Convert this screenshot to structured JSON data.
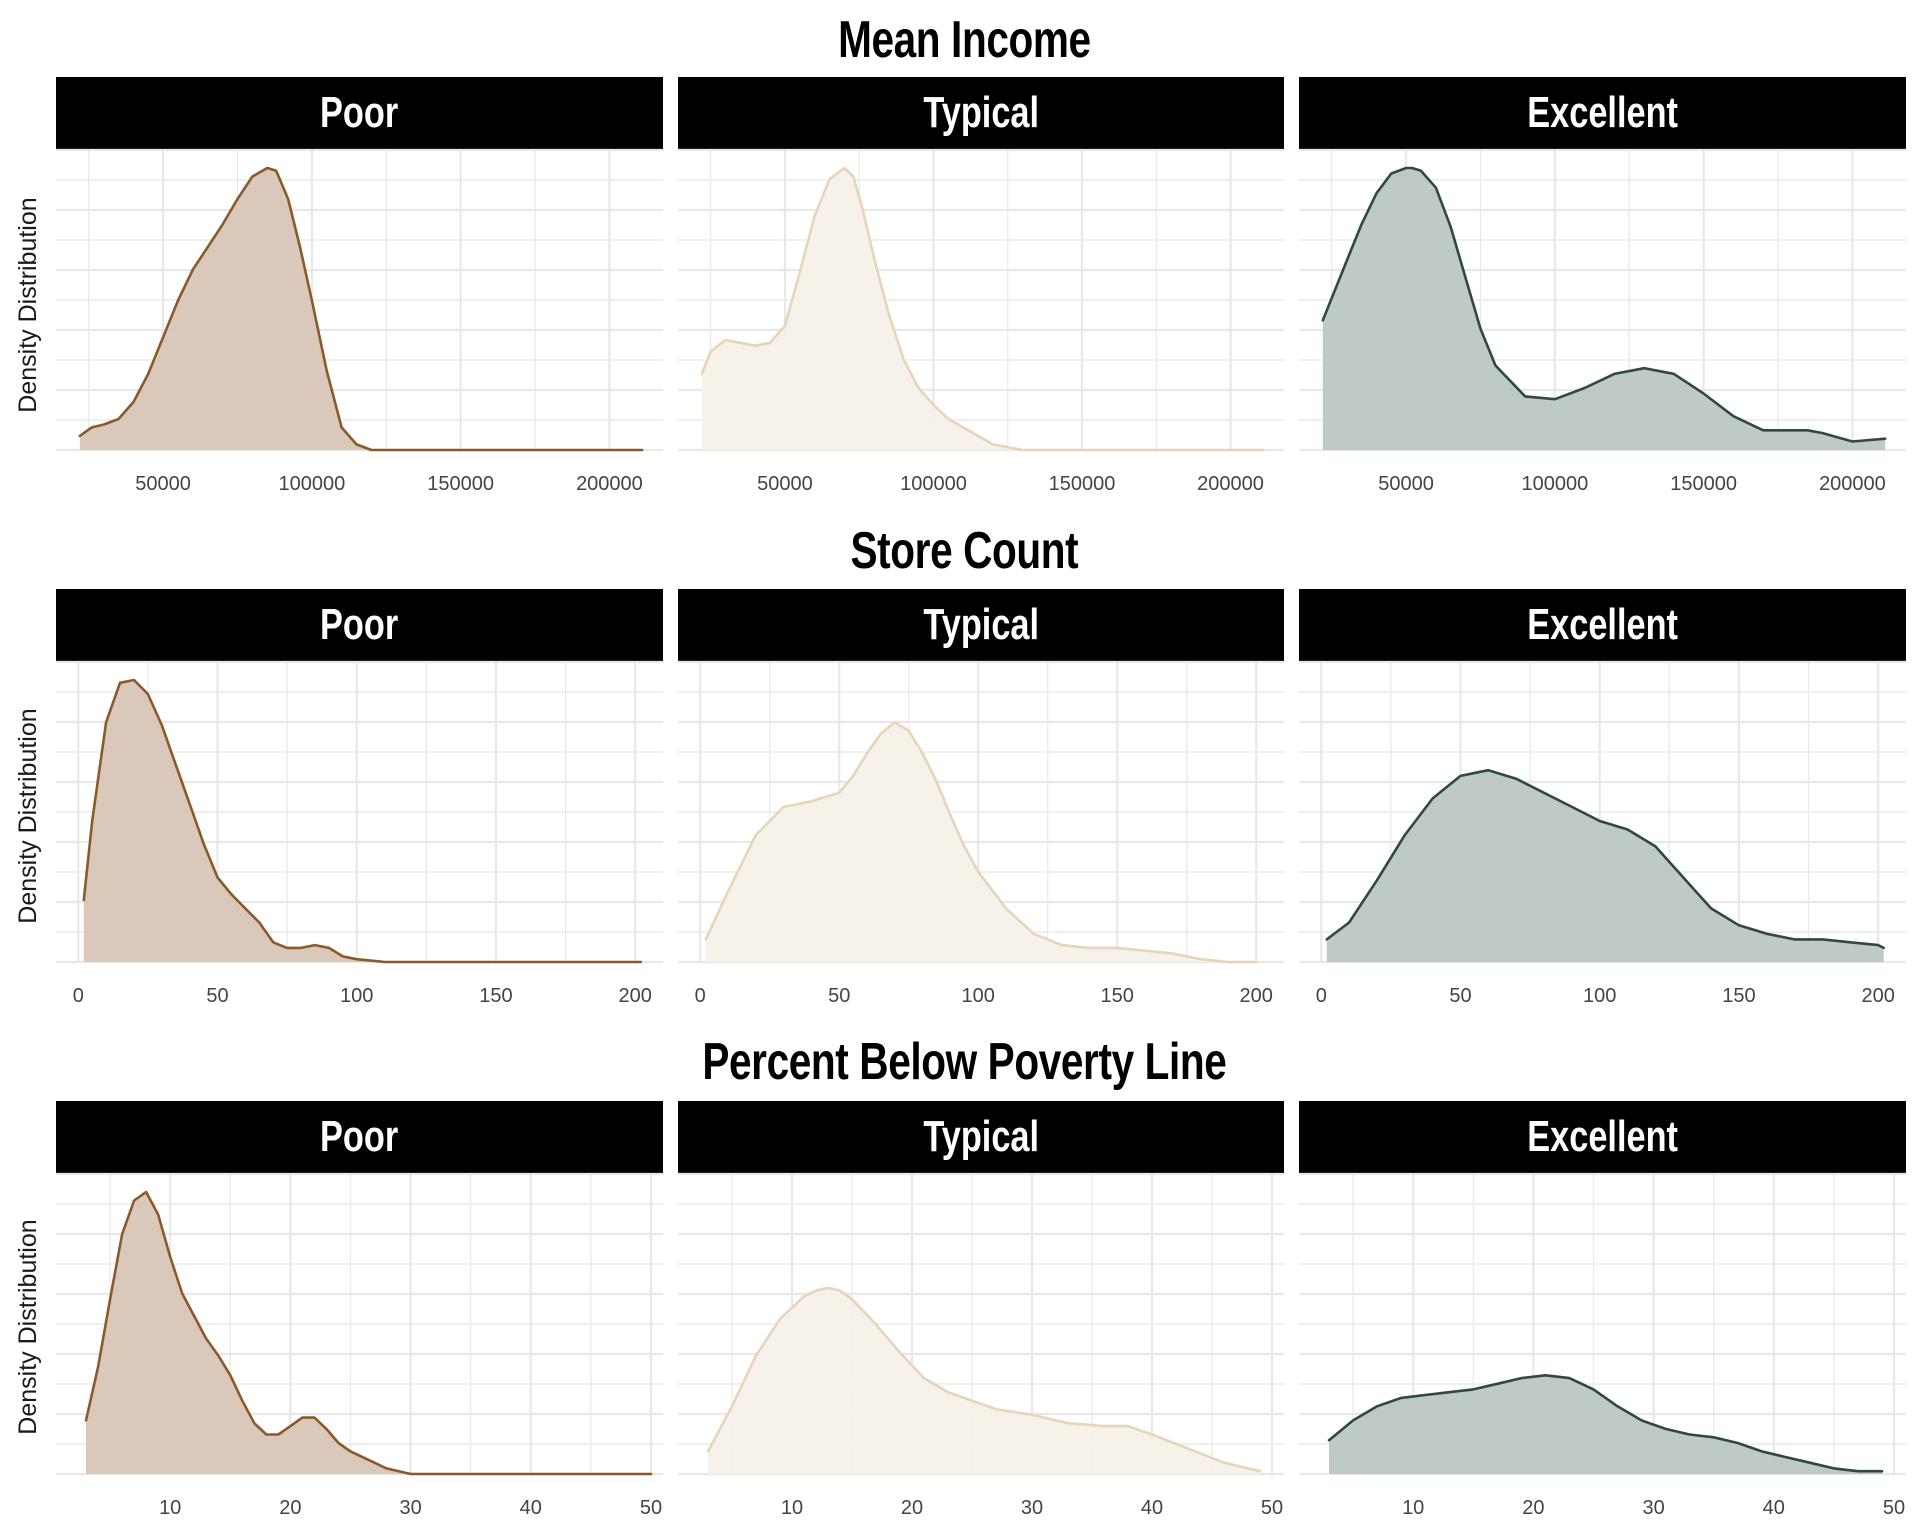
{
  "y_axis_label": "Density Distribution",
  "facet_labels": [
    "Poor",
    "Typical",
    "Excellent"
  ],
  "colors": {
    "Poor": {
      "line": "#8B5A2B",
      "fill": "#D8C6B6"
    },
    "Typical": {
      "line": "#E6D5B8",
      "fill": "#F5F0E8"
    },
    "Excellent": {
      "line": "#2F4A3C",
      "fill": "#BDC7C1"
    },
    "strip_background": "#000000",
    "strip_text": "#FFFFFF",
    "grid": "#E8E8E8"
  },
  "chart_data": [
    {
      "type": "area",
      "title": "Mean Income",
      "ylabel": "Density Distribution",
      "xlim": [
        14000,
        218000
      ],
      "ylim": [
        0,
        1
      ],
      "x_ticks": [
        50000,
        100000,
        150000,
        200000
      ],
      "x_tick_labels": [
        "50000",
        "100000",
        "150000",
        "200000"
      ],
      "grid": true,
      "y_tick_labels_shown": false,
      "series": [
        {
          "name": "Poor",
          "x": [
            22000,
            26000,
            30000,
            35000,
            40000,
            45000,
            50000,
            55000,
            60000,
            65000,
            70000,
            75000,
            80000,
            85000,
            88000,
            92000,
            96000,
            100000,
            105000,
            110000,
            115000,
            120000,
            130000,
            150000,
            175000,
            200000,
            211000
          ],
          "y": [
            0.05,
            0.08,
            0.09,
            0.11,
            0.17,
            0.27,
            0.4,
            0.53,
            0.64,
            0.72,
            0.8,
            0.89,
            0.97,
            1.0,
            0.99,
            0.89,
            0.72,
            0.53,
            0.28,
            0.08,
            0.02,
            0.0,
            0.0,
            0.0,
            0.0,
            0.0,
            0.0
          ]
        },
        {
          "name": "Typical",
          "x": [
            22000,
            25000,
            30000,
            35000,
            40000,
            45000,
            50000,
            55000,
            60000,
            65000,
            70000,
            73000,
            76000,
            80000,
            85000,
            90000,
            95000,
            100000,
            105000,
            110000,
            115000,
            120000,
            130000,
            150000,
            175000,
            200000,
            211000
          ],
          "y": [
            0.27,
            0.35,
            0.39,
            0.38,
            0.37,
            0.38,
            0.44,
            0.63,
            0.83,
            0.96,
            1.0,
            0.97,
            0.86,
            0.68,
            0.48,
            0.32,
            0.22,
            0.16,
            0.11,
            0.08,
            0.05,
            0.02,
            0.0,
            0.0,
            0.0,
            0.0,
            0.0
          ]
        },
        {
          "name": "Excellent",
          "x": [
            22000,
            30000,
            35000,
            40000,
            45000,
            50000,
            52000,
            55000,
            60000,
            65000,
            70000,
            75000,
            80000,
            90000,
            100000,
            110000,
            120000,
            130000,
            140000,
            150000,
            160000,
            170000,
            180000,
            185000,
            190000,
            200000,
            211000
          ],
          "y": [
            0.46,
            0.67,
            0.8,
            0.91,
            0.98,
            1.0,
            1.0,
            0.99,
            0.93,
            0.79,
            0.61,
            0.43,
            0.3,
            0.19,
            0.18,
            0.22,
            0.27,
            0.29,
            0.27,
            0.2,
            0.12,
            0.07,
            0.07,
            0.07,
            0.06,
            0.03,
            0.04
          ]
        }
      ]
    },
    {
      "type": "area",
      "title": "Store Count",
      "ylabel": "Density Distribution",
      "xlim": [
        -8,
        210
      ],
      "ylim": [
        0,
        1
      ],
      "x_ticks": [
        0,
        50,
        100,
        150,
        200
      ],
      "x_tick_labels": [
        "0",
        "50",
        "100",
        "150",
        "200"
      ],
      "grid": true,
      "y_tick_labels_shown": false,
      "series": [
        {
          "name": "Poor",
          "x": [
            2,
            5,
            10,
            15,
            20,
            25,
            30,
            35,
            40,
            45,
            50,
            55,
            60,
            65,
            70,
            75,
            80,
            85,
            90,
            95,
            100,
            110,
            120,
            150,
            200,
            202
          ],
          "y": [
            0.22,
            0.5,
            0.85,
            0.99,
            1.0,
            0.95,
            0.84,
            0.7,
            0.56,
            0.42,
            0.3,
            0.24,
            0.19,
            0.14,
            0.07,
            0.05,
            0.05,
            0.06,
            0.05,
            0.02,
            0.01,
            0.0,
            0.0,
            0.0,
            0.0,
            0.0
          ]
        },
        {
          "name": "Typical",
          "x": [
            2,
            10,
            20,
            30,
            40,
            50,
            55,
            60,
            65,
            70,
            75,
            80,
            85,
            90,
            95,
            100,
            110,
            120,
            130,
            140,
            150,
            160,
            170,
            180,
            190,
            200
          ],
          "y": [
            0.08,
            0.25,
            0.45,
            0.55,
            0.57,
            0.6,
            0.66,
            0.74,
            0.81,
            0.85,
            0.82,
            0.74,
            0.64,
            0.52,
            0.41,
            0.32,
            0.19,
            0.1,
            0.06,
            0.05,
            0.05,
            0.04,
            0.03,
            0.01,
            0.0,
            0.0
          ]
        },
        {
          "name": "Excellent",
          "x": [
            2,
            10,
            20,
            30,
            40,
            50,
            60,
            70,
            80,
            90,
            100,
            110,
            120,
            130,
            140,
            150,
            160,
            170,
            180,
            190,
            200,
            202
          ],
          "y": [
            0.08,
            0.14,
            0.29,
            0.45,
            0.58,
            0.66,
            0.68,
            0.65,
            0.6,
            0.55,
            0.5,
            0.47,
            0.41,
            0.3,
            0.19,
            0.13,
            0.1,
            0.08,
            0.08,
            0.07,
            0.06,
            0.05
          ]
        }
      ]
    },
    {
      "type": "area",
      "title": "Percent Below Poverty Line",
      "ylabel": "Density Distribution",
      "xlim": [
        0.5,
        51
      ],
      "ylim": [
        0,
        1
      ],
      "x_ticks": [
        10,
        20,
        30,
        40,
        50
      ],
      "x_tick_labels": [
        "10",
        "20",
        "30",
        "40",
        "50"
      ],
      "grid": true,
      "y_tick_labels_shown": false,
      "series": [
        {
          "name": "Poor",
          "x": [
            3,
            4,
            5,
            6,
            7,
            8,
            9,
            10,
            11,
            12,
            13,
            14,
            15,
            16,
            17,
            18,
            19,
            20,
            21,
            22,
            23,
            24,
            25,
            26,
            27,
            28,
            30,
            35,
            40,
            50
          ],
          "y": [
            0.19,
            0.38,
            0.62,
            0.85,
            0.97,
            1.0,
            0.92,
            0.77,
            0.64,
            0.56,
            0.48,
            0.42,
            0.35,
            0.26,
            0.18,
            0.14,
            0.14,
            0.17,
            0.2,
            0.2,
            0.16,
            0.11,
            0.08,
            0.06,
            0.04,
            0.02,
            0.0,
            0.0,
            0.0,
            0.0
          ]
        },
        {
          "name": "Typical",
          "x": [
            3,
            5,
            7,
            9,
            11,
            12,
            13,
            14,
            15,
            17,
            19,
            21,
            23,
            25,
            27,
            30,
            33,
            36,
            38,
            40,
            43,
            46,
            49
          ],
          "y": [
            0.08,
            0.24,
            0.42,
            0.55,
            0.63,
            0.65,
            0.66,
            0.65,
            0.62,
            0.53,
            0.43,
            0.34,
            0.29,
            0.26,
            0.23,
            0.21,
            0.18,
            0.17,
            0.17,
            0.14,
            0.09,
            0.04,
            0.01
          ]
        },
        {
          "name": "Excellent",
          "x": [
            3,
            5,
            7,
            9,
            11,
            13,
            15,
            17,
            19,
            21,
            23,
            25,
            27,
            29,
            31,
            33,
            35,
            37,
            39,
            41,
            43,
            45,
            47,
            49
          ],
          "y": [
            0.12,
            0.19,
            0.24,
            0.27,
            0.28,
            0.29,
            0.3,
            0.32,
            0.34,
            0.35,
            0.34,
            0.3,
            0.24,
            0.19,
            0.16,
            0.14,
            0.13,
            0.11,
            0.08,
            0.06,
            0.04,
            0.02,
            0.01,
            0.01
          ]
        }
      ]
    }
  ]
}
